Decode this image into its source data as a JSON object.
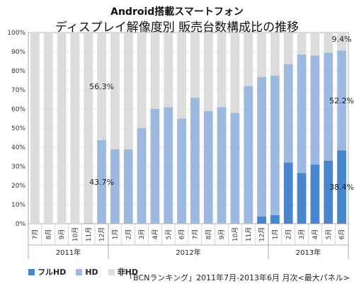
{
  "chart_data": {
    "type": "bar",
    "stacked": true,
    "percent": true,
    "title": "Android搭載スマートフォン",
    "subtitle": "ディスプレイ解像度別 販売台数構成比の推移",
    "categories": [
      "7月",
      "8月",
      "9月",
      "10月",
      "11月",
      "12月",
      "1月",
      "2月",
      "3月",
      "4月",
      "5月",
      "6月",
      "7月",
      "8月",
      "9月",
      "10月",
      "11月",
      "12月",
      "1月",
      "2月",
      "3月",
      "4月",
      "5月",
      "6月"
    ],
    "year_groups": [
      {
        "label": "2011年",
        "start": 0,
        "end": 5
      },
      {
        "label": "2012年",
        "start": 6,
        "end": 17
      },
      {
        "label": "2013年",
        "start": 18,
        "end": 23
      }
    ],
    "series": [
      {
        "name": "フルHD",
        "color": "#4a86d0",
        "values": [
          0,
          0,
          0,
          0,
          0,
          0,
          0,
          0,
          0,
          0,
          0,
          0,
          0,
          0,
          0,
          0,
          0,
          3.8,
          4.5,
          32.0,
          26.5,
          31.0,
          33.0,
          38.4
        ]
      },
      {
        "name": "HD",
        "color": "#9db9e0",
        "values": [
          0,
          0,
          0,
          0,
          0.5,
          43.7,
          39.0,
          39.0,
          50.0,
          60.0,
          61.0,
          55.0,
          66.0,
          59.0,
          61.0,
          58.0,
          72.0,
          73.0,
          73.0,
          51.5,
          62.0,
          57.0,
          56.5,
          52.2
        ]
      },
      {
        "name": "非HD",
        "color": "#dcdcdc",
        "values": [
          100,
          100,
          100,
          100,
          99.5,
          56.3,
          61.0,
          61.0,
          50.0,
          40.0,
          39.0,
          45.0,
          34.0,
          41.0,
          39.0,
          42.0,
          28.0,
          23.2,
          22.5,
          16.5,
          11.5,
          12.0,
          10.5,
          9.4
        ]
      }
    ],
    "data_labels": [
      {
        "text": "56.3%",
        "index": 5,
        "series": 2
      },
      {
        "text": "43.7%",
        "index": 5,
        "series": 1
      },
      {
        "text": "9.4%",
        "index": 23,
        "series": 2
      },
      {
        "text": "52.2%",
        "index": 23,
        "series": 1
      },
      {
        "text": "38.4%",
        "index": 23,
        "series": 0
      }
    ],
    "y_ticks": [
      "0%",
      "10%",
      "20%",
      "30%",
      "40%",
      "50%",
      "60%",
      "70%",
      "80%",
      "90%",
      "100%"
    ],
    "ylim": [
      0,
      100
    ],
    "grid": true,
    "legend_position": "bottom-left",
    "source": "「BCNランキング」2011年7月-2013年6月 月次<最大パネル>"
  }
}
